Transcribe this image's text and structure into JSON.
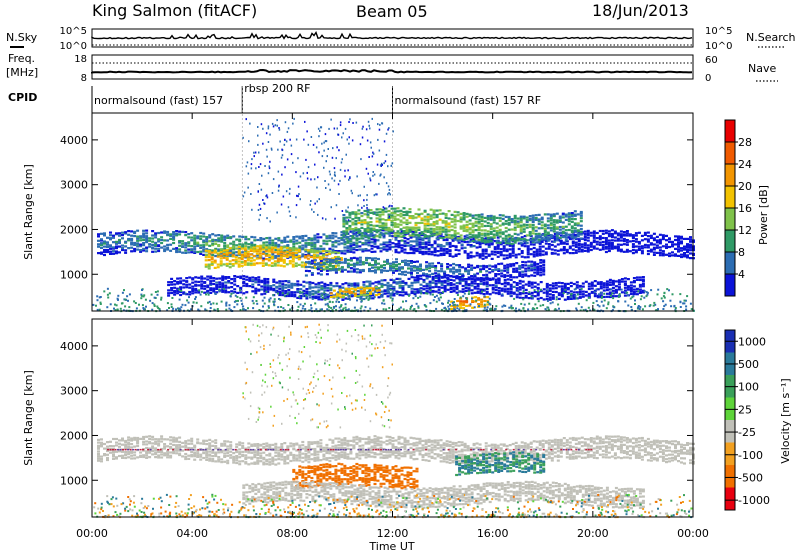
{
  "header": {
    "station": "King Salmon (fitACF)",
    "beam": "Beam 05",
    "date": "18/Jun/2013"
  },
  "chart_data": {
    "type": "heatmap",
    "x_label": "Time UT",
    "x_range_hours": [
      0,
      24
    ],
    "x_ticks": [
      "00:00",
      "04:00",
      "08:00",
      "12:00",
      "16:00",
      "20:00",
      "00:00"
    ],
    "panels": {
      "nsky": {
        "left_label": "N.Sky",
        "right_label": "N.Search",
        "left_ticks": [
          "10^5",
          "10^0"
        ],
        "right_ticks": [
          "10^5",
          "10^0"
        ]
      },
      "freq": {
        "left_label_line1": "Freq.",
        "left_label_line2": "[MHz]",
        "right_label": "Nave",
        "left_ticks": [
          "18",
          "8"
        ],
        "right_ticks": [
          "60",
          "0"
        ]
      },
      "cpid": {
        "label": "CPID",
        "segments": [
          {
            "start_h": 0,
            "end_h": 6,
            "text": "normalsound (fast) 157"
          },
          {
            "start_h": 6,
            "end_h": 12,
            "text": "rbsp 200 RF"
          },
          {
            "start_h": 12,
            "end_h": 24,
            "text": "normalsound (fast) 157 RF"
          }
        ]
      },
      "power": {
        "y_label": "Slant Range [km]",
        "y_range_km": [
          180,
          4600
        ],
        "y_ticks": [
          1000,
          2000,
          3000,
          4000
        ],
        "colorbar_label": "Power [dB]",
        "colorbar_ticks": [
          "28",
          "24",
          "20",
          "16",
          "12",
          "8",
          "4"
        ],
        "colorbar_colors": [
          "#e80000",
          "#f05a00",
          "#f29500",
          "#f2c200",
          "#7fc24a",
          "#2f9a66",
          "#2c6db3",
          "#0b13d8"
        ]
      },
      "velocity": {
        "y_label": "Slant Range [km]",
        "y_range_km": [
          180,
          4600
        ],
        "y_ticks": [
          1000,
          2000,
          3000,
          4000
        ],
        "colorbar_label": "Velocity [m s⁻¹]",
        "colorbar_ticks": [
          "1000",
          "500",
          "100",
          "25",
          "-25",
          "-100",
          "-500",
          "-1000"
        ],
        "colorbar_colors": [
          "#1a2fb3",
          "#2a7a9a",
          "#3aa05a",
          "#5ed43a",
          "#c0c0b8",
          "#f2a020",
          "#f07000",
          "#e80010"
        ]
      }
    },
    "power_features": [
      {
        "t0": 0.2,
        "t1": 24,
        "r0": 1460,
        "r1": 1960,
        "peak_h": 5.8,
        "tilt": 120,
        "level": 12
      },
      {
        "t0": 4.5,
        "t1": 10,
        "r0": 1150,
        "r1": 1600,
        "peak_h": 6.5,
        "tilt": 0,
        "level": 22
      },
      {
        "t0": 10,
        "t1": 19.5,
        "r0": 1800,
        "r1": 2450,
        "peak_h": 13,
        "tilt": 0,
        "level": 16
      },
      {
        "t0": 8.5,
        "t1": 18,
        "r0": 1000,
        "r1": 1350,
        "peak_h": 11,
        "tilt": 0,
        "level": 10
      },
      {
        "t0": 3,
        "t1": 22,
        "r0": 550,
        "r1": 950,
        "peak_h": 10.5,
        "tilt": 0,
        "level": 8
      },
      {
        "t0": 9.5,
        "t1": 11.5,
        "r0": 500,
        "r1": 700,
        "peak_h": 10.5,
        "tilt": 0,
        "level": 22
      },
      {
        "t0": 14.3,
        "t1": 15.8,
        "r0": 250,
        "r1": 500,
        "peak_h": 15,
        "tilt": 0,
        "level": 24
      }
    ],
    "velocity_features": [
      {
        "t0": 0.2,
        "t1": 24,
        "r0": 1460,
        "r1": 1960,
        "v": 0
      },
      {
        "t0": 8,
        "t1": 13,
        "r0": 850,
        "r1": 1350,
        "v": -150
      },
      {
        "t0": 14.5,
        "t1": 18,
        "r0": 1150,
        "r1": 1600,
        "v": 100
      },
      {
        "t0": 6,
        "t1": 22,
        "r0": 500,
        "r1": 950,
        "v": 0
      }
    ]
  }
}
